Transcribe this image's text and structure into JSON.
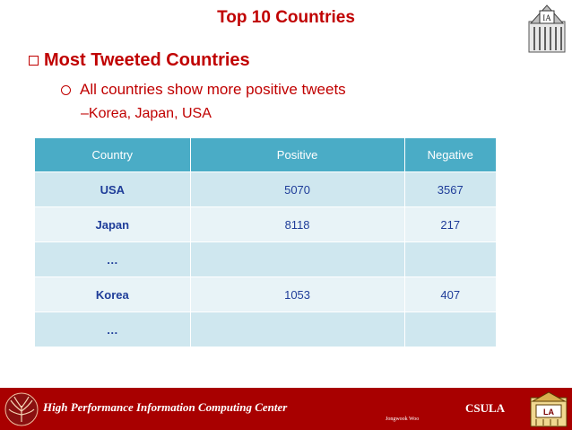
{
  "slide": {
    "title": "Top 10 Countries",
    "bullet_level1": "Most Tweeted Countries",
    "bullet_level2": "All countries show more positive tweets",
    "bullet_level3": "–Korea, Japan, USA"
  },
  "table": {
    "headers": [
      "Country",
      "Positive",
      "Negative"
    ],
    "rows": [
      [
        "USA",
        "5070",
        "3567"
      ],
      [
        "Japan",
        "8118",
        "217"
      ],
      [
        "…",
        "",
        ""
      ],
      [
        "Korea",
        "1053",
        "407"
      ],
      [
        "…",
        "",
        ""
      ]
    ]
  },
  "footer": {
    "left_text": "High Performance Information Computing Center",
    "right_text": "CSULA",
    "author": "Jongwook Woo"
  },
  "icons": {
    "top_logo": "hpic-building-logo-icon",
    "footer_emblem": "tree-emblem-icon",
    "footer_logo": "csula-building-logo-icon"
  },
  "colors": {
    "accent": "#c00000",
    "table_header": "#4aacc6",
    "row_dark": "#cfe7ef",
    "row_light": "#e8f3f7",
    "footer": "#a80000"
  }
}
